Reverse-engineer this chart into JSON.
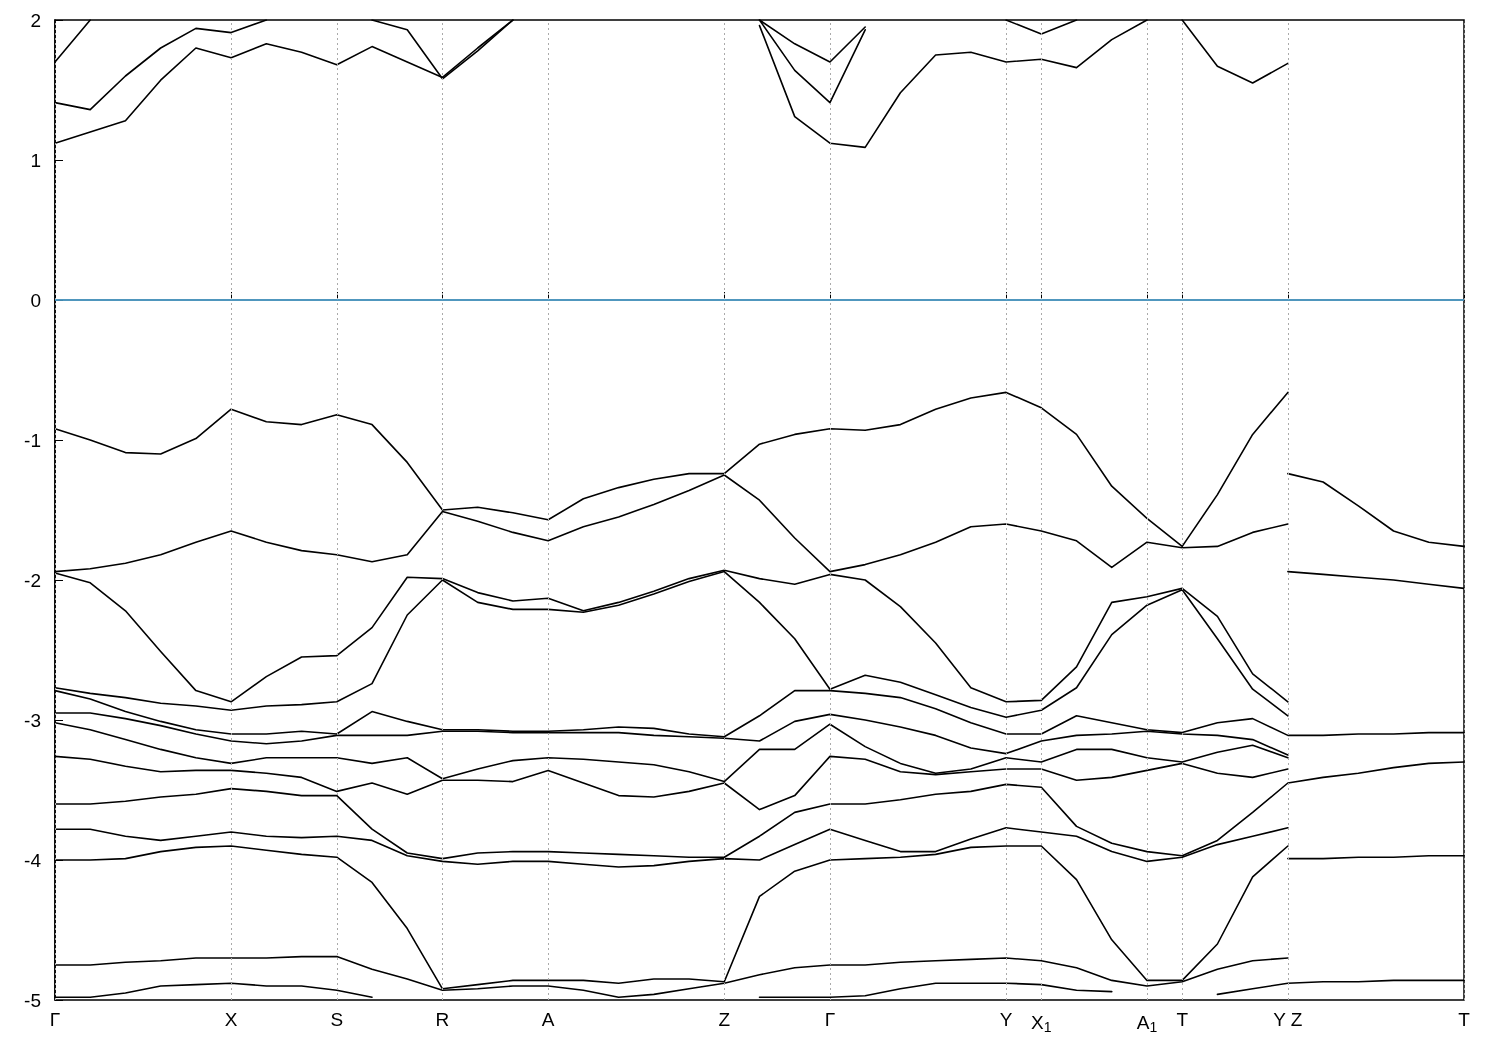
{
  "chart_data": {
    "type": "line",
    "ylim": [
      -5,
      2
    ],
    "categories": [
      "Γ",
      null,
      null,
      null,
      null,
      "X",
      null,
      null,
      "S",
      null,
      null,
      "R",
      null,
      null,
      "A",
      null,
      null,
      null,
      null,
      "Z",
      null,
      null,
      "Γ",
      null,
      null,
      null,
      null,
      "Y",
      "X$_{1}$",
      null,
      null,
      "A$_{1}$",
      "T",
      null,
      null,
      "Y Z",
      null,
      null,
      null,
      null,
      "T"
    ],
    "yticks": [
      -5,
      -4,
      -3,
      -2,
      -1,
      0,
      1,
      2
    ],
    "grid": "x",
    "marker": "none",
    "line_style": "solid",
    "ref_lines": [
      {
        "axis": "y",
        "value": 0,
        "color": "#56b4e9"
      }
    ],
    "series": [
      {
        "color": "#000000",
        "values": [
          -0.92,
          -1.0,
          -1.09,
          -1.1,
          -0.99,
          -0.78,
          -0.87,
          -0.89,
          -0.82,
          -0.89,
          -1.16,
          -1.5,
          -1.48,
          -1.52,
          -1.57,
          -1.42,
          -1.34,
          -1.28,
          -1.24,
          -1.24,
          -1.03,
          -0.96,
          -0.92,
          -0.93,
          -0.89,
          -0.78,
          -0.7,
          -0.66,
          -0.77,
          -0.96,
          -1.33,
          -1.56,
          -1.76,
          -1.39,
          -0.96,
          -0.66,
          null,
          null,
          null,
          null,
          null
        ]
      },
      {
        "color": "#000000",
        "values": [
          -1.94,
          -1.92,
          -1.88,
          -1.82,
          -1.73,
          -1.65,
          -1.73,
          -1.79,
          -1.82,
          -1.87,
          -1.82,
          -1.51,
          -1.58,
          -1.66,
          -1.72,
          -1.62,
          -1.55,
          -1.46,
          -1.36,
          -1.25,
          -1.43,
          -1.7,
          -1.94,
          -1.89,
          -1.82,
          -1.73,
          -1.62,
          -1.6,
          -1.65,
          -1.72,
          -1.91,
          -1.73,
          -1.77,
          -1.76,
          -1.66,
          -1.6,
          null,
          null,
          null,
          null,
          null
        ]
      },
      {
        "color": "#000000",
        "values": [
          -1.95,
          -2.02,
          -2.22,
          -2.51,
          -2.79,
          -2.87,
          -2.69,
          -2.55,
          -2.54,
          -2.34,
          -1.98,
          -1.99,
          -2.09,
          -2.15,
          -2.13,
          -2.22,
          -2.16,
          -2.08,
          -1.99,
          -1.93,
          -1.99,
          -2.03,
          -1.96,
          -2.0,
          -2.19,
          -2.45,
          -2.77,
          -2.87,
          -2.86,
          -2.62,
          -2.16,
          -2.12,
          -2.06,
          -2.26,
          -2.67,
          -2.87,
          null,
          null,
          null,
          null,
          null
        ]
      },
      {
        "color": "#000000",
        "values": [
          -2.77,
          -2.81,
          -2.84,
          -2.88,
          -2.9,
          -2.93,
          -2.9,
          -2.89,
          -2.87,
          -2.74,
          -2.25,
          -2.0,
          -2.16,
          -2.21,
          -2.21,
          -2.23,
          -2.18,
          -2.1,
          -2.01,
          -1.94,
          -2.16,
          -2.42,
          -2.78,
          -2.68,
          -2.73,
          -2.82,
          -2.91,
          -2.98,
          -2.93,
          -2.77,
          -2.39,
          -2.18,
          -2.07,
          -2.42,
          -2.78,
          -2.97,
          null,
          null,
          null,
          null,
          null
        ]
      },
      {
        "color": "#000000",
        "values": [
          -2.79,
          -2.85,
          -2.94,
          -3.01,
          -3.07,
          -3.1,
          -3.1,
          -3.08,
          -3.1,
          -2.94,
          -3.01,
          -3.07,
          -3.07,
          -3.08,
          -3.08,
          -3.07,
          -3.05,
          -3.06,
          -3.1,
          -3.12,
          -2.97,
          -2.79,
          -2.79,
          -2.81,
          -2.84,
          -2.92,
          -3.02,
          -3.1,
          -3.1,
          -2.97,
          -3.02,
          -3.07,
          -3.09,
          -3.02,
          -2.99,
          -3.11,
          -3.11,
          -3.1,
          -3.1,
          -3.09,
          -3.09
        ]
      },
      {
        "color": "#000000",
        "values": [
          -2.95,
          -2.95,
          -2.99,
          -3.04,
          -3.1,
          -3.15,
          -3.17,
          -3.15,
          -3.11,
          -3.11,
          -3.11,
          -3.08,
          -3.08,
          -3.09,
          -3.09,
          -3.09,
          -3.09,
          -3.11,
          -3.12,
          -3.13,
          -3.15,
          -3.01,
          -2.96,
          -3.0,
          -3.05,
          -3.11,
          -3.2,
          -3.24,
          -3.15,
          -3.11,
          -3.1,
          -3.08,
          -3.1,
          -3.11,
          -3.14,
          -3.25,
          null,
          null,
          null,
          null,
          null
        ]
      },
      {
        "color": "#000000",
        "values": [
          -3.02,
          -3.07,
          -3.14,
          -3.21,
          -3.27,
          -3.31,
          -3.27,
          -3.27,
          -3.27,
          -3.31,
          -3.27,
          -3.42,
          -3.35,
          -3.29,
          -3.27,
          -3.28,
          -3.3,
          -3.32,
          -3.37,
          -3.44,
          -3.21,
          -3.21,
          -3.03,
          -3.19,
          -3.31,
          -3.38,
          -3.35,
          -3.27,
          -3.3,
          -3.21,
          -3.21,
          -3.27,
          -3.3,
          -3.23,
          -3.18,
          -3.27,
          null,
          null,
          null,
          null,
          null
        ]
      },
      {
        "color": "#000000",
        "values": [
          -3.26,
          -3.28,
          -3.33,
          -3.37,
          -3.36,
          -3.36,
          -3.38,
          -3.41,
          -3.51,
          -3.45,
          -3.53,
          -3.43,
          -3.43,
          -3.44,
          -3.36,
          -3.45,
          -3.54,
          -3.55,
          -3.51,
          -3.45,
          -3.64,
          -3.54,
          -3.26,
          -3.28,
          -3.37,
          -3.39,
          -3.37,
          -3.35,
          -3.35,
          -3.43,
          -3.41,
          -3.36,
          -3.31,
          -3.38,
          -3.41,
          -3.35,
          null,
          null,
          null,
          null,
          null
        ]
      },
      {
        "color": "#000000",
        "values": [
          -3.6,
          -3.6,
          -3.58,
          -3.55,
          -3.53,
          -3.49,
          -3.51,
          -3.54,
          -3.54,
          -3.78,
          -3.95,
          -3.99,
          -3.95,
          -3.94,
          -3.94,
          -3.95,
          -3.96,
          -3.97,
          -3.98,
          -3.98,
          -3.83,
          -3.66,
          -3.6,
          -3.6,
          -3.57,
          -3.53,
          -3.51,
          -3.46,
          -3.48,
          -3.76,
          -3.88,
          -3.94,
          -3.97,
          -3.86,
          -3.66,
          -3.45,
          -3.41,
          -3.38,
          -3.34,
          -3.31,
          -3.3
        ]
      },
      {
        "color": "#000000",
        "values": [
          -3.78,
          -3.78,
          -3.83,
          -3.86,
          -3.83,
          -3.8,
          -3.83,
          -3.84,
          -3.83,
          -3.86,
          -3.97,
          -4.01,
          -4.03,
          -4.01,
          -4.01,
          -4.03,
          -4.05,
          -4.04,
          -4.01,
          -3.99,
          -4.0,
          -3.89,
          -3.78,
          -3.86,
          -3.94,
          -3.94,
          -3.85,
          -3.77,
          -3.8,
          -3.83,
          -3.94,
          -4.01,
          -3.98,
          -3.89,
          -3.83,
          -3.77,
          null,
          null,
          null,
          null,
          null
        ]
      },
      {
        "color": "#000000",
        "values": [
          -4.0,
          -4.0,
          -3.99,
          -3.94,
          -3.91,
          -3.9,
          -3.93,
          -3.96,
          -3.98,
          -4.16,
          -4.49,
          -4.92,
          -4.89,
          -4.86,
          -4.86,
          -4.86,
          -4.88,
          -4.85,
          -4.85,
          -4.87,
          -4.26,
          -4.08,
          -4.0,
          -3.99,
          -3.98,
          -3.96,
          -3.91,
          -3.9,
          -3.9,
          -4.14,
          -4.57,
          -4.86,
          -4.86,
          -4.6,
          -4.12,
          -3.9,
          null,
          null,
          null,
          null,
          null
        ]
      },
      {
        "color": "#000000",
        "values": [
          -4.75,
          -4.75,
          -4.73,
          -4.72,
          -4.7,
          -4.7,
          -4.7,
          -4.69,
          -4.69,
          -4.78,
          -4.85,
          -4.93,
          -4.92,
          -4.9,
          -4.9,
          -4.93,
          -4.98,
          -4.96,
          -4.92,
          -4.88,
          -4.82,
          -4.77,
          -4.75,
          -4.75,
          -4.73,
          -4.72,
          -4.71,
          -4.7,
          -4.72,
          -4.77,
          -4.86,
          -4.9,
          -4.87,
          -4.78,
          -4.72,
          -4.7,
          null,
          null,
          null,
          null,
          null
        ]
      },
      {
        "color": "#000000",
        "values": [
          -4.98,
          -4.98,
          -4.95,
          -4.9,
          -4.89,
          -4.88,
          -4.9,
          -4.9,
          -4.93,
          -4.98,
          null,
          null,
          null,
          null,
          null,
          null,
          null,
          null,
          null,
          null,
          -4.98,
          -4.98,
          -4.98,
          -4.97,
          -4.92,
          -4.88,
          -4.88,
          -4.88,
          -4.89,
          -4.93,
          -4.94,
          null,
          null,
          -4.96,
          -4.92,
          -4.88,
          -4.87,
          -4.87,
          -4.86,
          -4.86,
          -4.86
        ]
      },
      {
        "color": "#000000",
        "values": [
          null,
          null,
          null,
          null,
          null,
          null,
          null,
          null,
          null,
          null,
          null,
          null,
          null,
          null,
          null,
          null,
          null,
          null,
          null,
          null,
          null,
          null,
          null,
          null,
          null,
          null,
          null,
          null,
          null,
          null,
          null,
          null,
          null,
          null,
          null,
          -1.24,
          -1.3,
          -1.47,
          -1.65,
          -1.73,
          -1.76
        ]
      },
      {
        "color": "#000000",
        "values": [
          null,
          null,
          null,
          null,
          null,
          null,
          null,
          null,
          null,
          null,
          null,
          null,
          null,
          null,
          null,
          null,
          null,
          null,
          null,
          null,
          null,
          null,
          null,
          null,
          null,
          null,
          null,
          null,
          null,
          null,
          null,
          null,
          null,
          null,
          null,
          -1.94,
          -1.96,
          -1.98,
          -2.0,
          -2.03,
          -2.06
        ]
      },
      {
        "color": "#000000",
        "values": [
          null,
          null,
          null,
          null,
          null,
          null,
          null,
          null,
          null,
          null,
          null,
          null,
          null,
          null,
          null,
          null,
          null,
          null,
          null,
          null,
          null,
          null,
          null,
          null,
          null,
          null,
          null,
          null,
          null,
          null,
          null,
          null,
          null,
          null,
          null,
          -3.99,
          -3.99,
          -3.98,
          -3.98,
          -3.97,
          -3.97
        ]
      },
      {
        "color": "#000000",
        "values": [
          1.12,
          1.2,
          1.28,
          1.57,
          1.8,
          1.73,
          1.83,
          1.77,
          1.68,
          1.81,
          1.7,
          1.59,
          1.8,
          2.0,
          null,
          null,
          null,
          null,
          null,
          null,
          null,
          null,
          null,
          null,
          null,
          null,
          null,
          null,
          null,
          null,
          null,
          null,
          null,
          null,
          null,
          null,
          null,
          null,
          null,
          null,
          null
        ]
      },
      {
        "color": "#000000",
        "values": [
          1.41,
          1.36,
          1.6,
          1.8,
          1.94,
          1.91,
          2.0,
          null,
          null,
          null,
          null,
          null,
          null,
          null,
          null,
          null,
          null,
          null,
          null,
          null,
          null,
          null,
          null,
          null,
          null,
          null,
          null,
          null,
          null,
          null,
          null,
          null,
          null,
          null,
          null,
          null,
          null,
          null,
          null,
          null,
          null
        ]
      },
      {
        "color": "#000000",
        "values": [
          1.7,
          2.0,
          null,
          null,
          null,
          null,
          null,
          null,
          null,
          null,
          null,
          null,
          null,
          null,
          null,
          null,
          null,
          null,
          null,
          null,
          null,
          null,
          null,
          null,
          null,
          null,
          null,
          null,
          null,
          null,
          null,
          null,
          null,
          null,
          null,
          null,
          null,
          null,
          null,
          null,
          null
        ]
      },
      {
        "color": "#000000",
        "values": [
          null,
          null,
          null,
          null,
          null,
          null,
          null,
          null,
          null,
          2.0,
          1.93,
          1.58,
          1.78,
          2.0,
          null,
          null,
          null,
          null,
          null,
          null,
          null,
          null,
          null,
          null,
          null,
          null,
          null,
          null,
          null,
          null,
          null,
          null,
          null,
          null,
          null,
          null,
          null,
          null,
          null,
          null,
          null
        ]
      },
      {
        "color": "#000000",
        "values": [
          null,
          null,
          null,
          null,
          null,
          null,
          null,
          null,
          null,
          null,
          null,
          null,
          null,
          null,
          null,
          null,
          null,
          null,
          null,
          null,
          1.96,
          1.31,
          1.12,
          1.09,
          1.48,
          1.75,
          1.77,
          1.7,
          1.72,
          1.66,
          1.86,
          2.0,
          null,
          null,
          null,
          null,
          null,
          null,
          null,
          null,
          null
        ]
      },
      {
        "color": "#000000",
        "values": [
          null,
          null,
          null,
          null,
          null,
          null,
          null,
          null,
          null,
          null,
          null,
          null,
          null,
          null,
          null,
          null,
          null,
          null,
          null,
          null,
          2.0,
          1.64,
          1.41,
          1.93,
          null,
          null,
          null,
          null,
          null,
          null,
          null,
          null,
          null,
          null,
          null,
          null,
          null,
          null,
          null,
          null,
          null
        ]
      },
      {
        "color": "#000000",
        "values": [
          null,
          null,
          null,
          null,
          null,
          null,
          null,
          null,
          null,
          null,
          null,
          null,
          null,
          null,
          null,
          null,
          null,
          null,
          null,
          null,
          2.0,
          1.83,
          1.7,
          1.95,
          null,
          null,
          null,
          null,
          null,
          null,
          null,
          null,
          null,
          null,
          null,
          null,
          null,
          null,
          null,
          null,
          null
        ]
      },
      {
        "color": "#000000",
        "values": [
          null,
          null,
          null,
          null,
          null,
          null,
          null,
          null,
          null,
          null,
          null,
          null,
          null,
          null,
          null,
          null,
          null,
          null,
          null,
          null,
          null,
          null,
          null,
          null,
          null,
          null,
          null,
          2.0,
          1.9,
          2.0,
          null,
          null,
          null,
          null,
          null,
          null,
          null,
          null,
          null,
          null,
          null
        ]
      },
      {
        "color": "#000000",
        "values": [
          null,
          null,
          null,
          null,
          null,
          null,
          null,
          null,
          null,
          null,
          null,
          null,
          null,
          null,
          null,
          null,
          null,
          null,
          null,
          null,
          null,
          null,
          null,
          null,
          null,
          null,
          null,
          null,
          null,
          null,
          null,
          null,
          2.0,
          1.67,
          1.55,
          1.69,
          null,
          null,
          null,
          null,
          null
        ]
      }
    ]
  }
}
